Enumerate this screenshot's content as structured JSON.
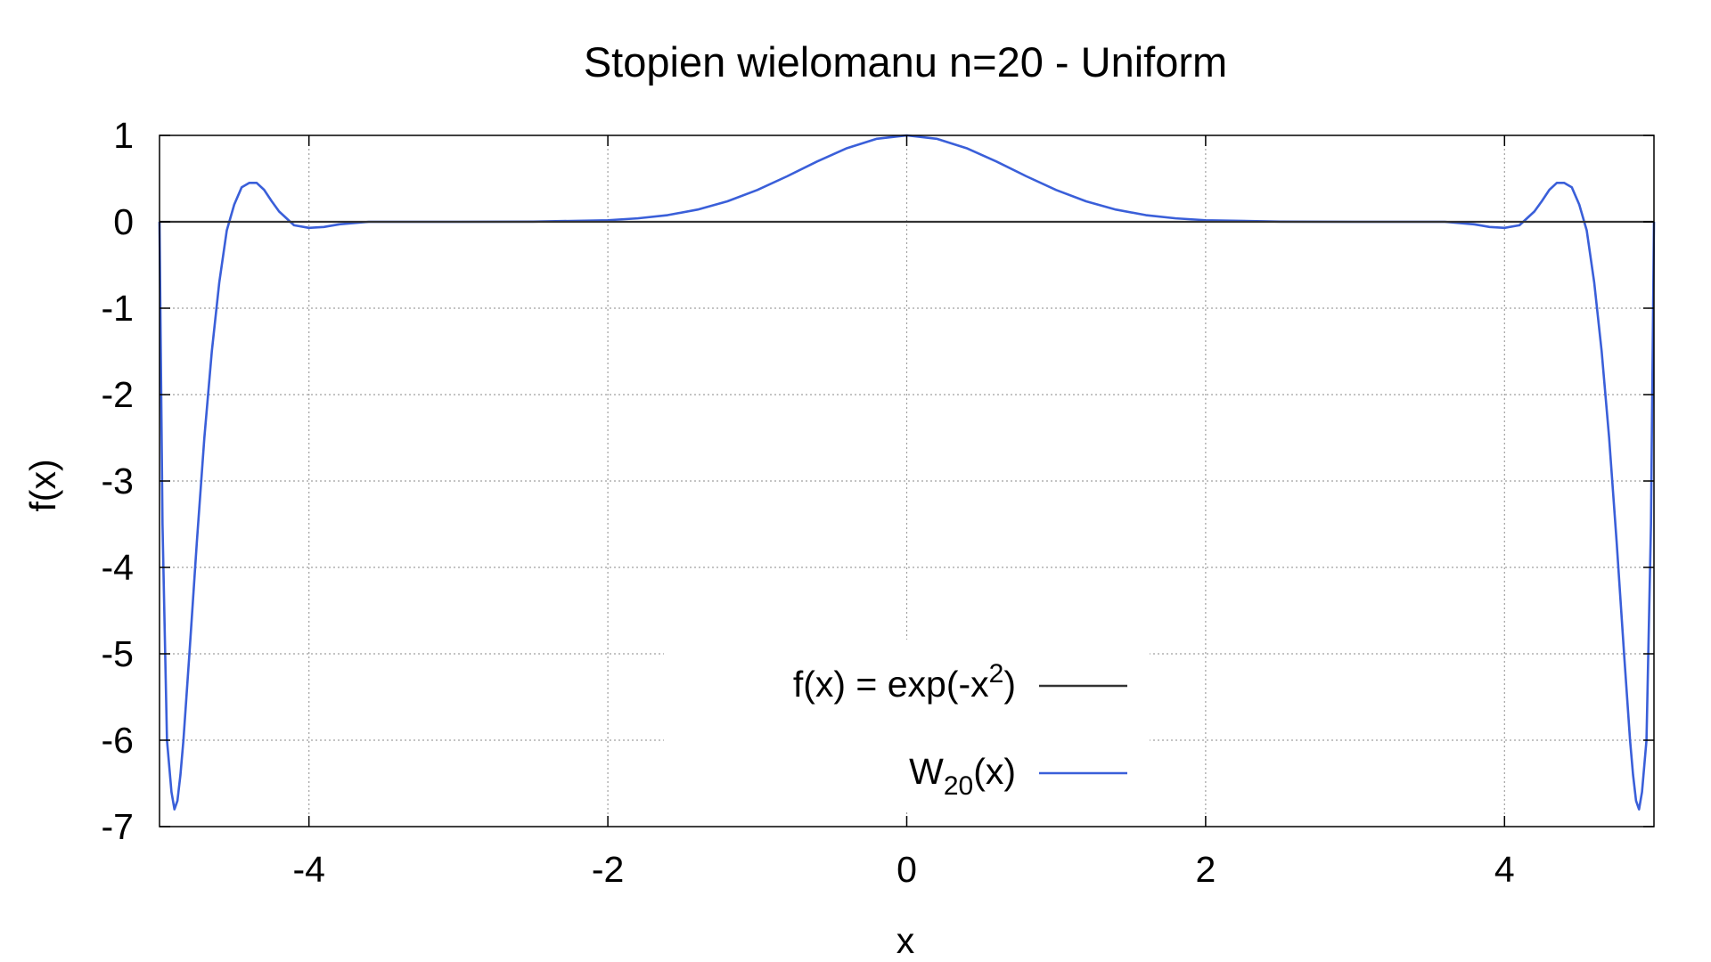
{
  "chart_data": {
    "type": "line",
    "title": "Stopien wielomanu n=20 - Uniform",
    "xlabel": "x",
    "ylabel": "f(x)",
    "xlim": [
      -5,
      5
    ],
    "ylim": [
      -7,
      1
    ],
    "x_ticks": [
      "-4",
      "-2",
      "0",
      "2",
      "4"
    ],
    "x_tick_values": [
      -4,
      -2,
      0,
      2,
      4
    ],
    "y_ticks": [
      "1",
      "0",
      "-1",
      "-2",
      "-3",
      "-4",
      "-5",
      "-6",
      "-7"
    ],
    "y_tick_values": [
      1,
      0,
      -1,
      -2,
      -3,
      -4,
      -5,
      -6,
      -7
    ],
    "grid": true,
    "legend_position": "bottom-center",
    "legend": {
      "f_main": "f(x) = exp(-x",
      "f_sup": "2",
      "f_end": ")",
      "w_main": "W",
      "w_sub": "20",
      "w_end": "(x)"
    },
    "series": [
      {
        "legend_label": "f(x) = exp(-x2)",
        "color": "#333333",
        "x": [
          -5,
          5
        ],
        "y": [
          0,
          0
        ]
      },
      {
        "legend_label": "W20(x)",
        "color": "#3a5fd9",
        "x": [
          -5.0,
          -4.98,
          -4.95,
          -4.92,
          -4.9,
          -4.88,
          -4.86,
          -4.84,
          -4.82,
          -4.8,
          -4.75,
          -4.7,
          -4.65,
          -4.6,
          -4.55,
          -4.5,
          -4.45,
          -4.4,
          -4.35,
          -4.3,
          -4.25,
          -4.2,
          -4.1,
          -4.0,
          -3.9,
          -3.8,
          -3.6,
          -3.4,
          -3.2,
          -3.0,
          -2.5,
          -2.0,
          -1.8,
          -1.6,
          -1.4,
          -1.2,
          -1.0,
          -0.8,
          -0.6,
          -0.4,
          -0.2,
          0.0,
          0.2,
          0.4,
          0.6,
          0.8,
          1.0,
          1.2,
          1.4,
          1.6,
          1.8,
          2.0,
          2.5,
          3.0,
          3.2,
          3.4,
          3.6,
          3.8,
          3.9,
          4.0,
          4.1,
          4.2,
          4.25,
          4.3,
          4.35,
          4.4,
          4.45,
          4.5,
          4.55,
          4.6,
          4.65,
          4.7,
          4.75,
          4.8,
          4.82,
          4.84,
          4.86,
          4.88,
          4.9,
          4.92,
          4.95,
          4.98,
          5.0
        ],
        "y": [
          0.0,
          -3.5,
          -6.0,
          -6.6,
          -6.8,
          -6.7,
          -6.4,
          -6.0,
          -5.5,
          -5.0,
          -3.7,
          -2.5,
          -1.5,
          -0.7,
          -0.1,
          0.2,
          0.4,
          0.45,
          0.45,
          0.37,
          0.24,
          0.12,
          -0.04,
          -0.07,
          -0.06,
          -0.03,
          0.0,
          0.0,
          0.0,
          0.0,
          0.002,
          0.018,
          0.04,
          0.077,
          0.141,
          0.237,
          0.368,
          0.527,
          0.698,
          0.852,
          0.961,
          1.0,
          0.961,
          0.852,
          0.698,
          0.527,
          0.368,
          0.237,
          0.141,
          0.077,
          0.04,
          0.018,
          0.002,
          0.0,
          0.0,
          0.0,
          0.0,
          -0.03,
          -0.06,
          -0.07,
          -0.04,
          0.12,
          0.24,
          0.37,
          0.45,
          0.45,
          0.4,
          0.2,
          -0.1,
          -0.7,
          -1.5,
          -2.5,
          -3.7,
          -5.0,
          -5.5,
          -6.0,
          -6.4,
          -6.7,
          -6.8,
          -6.6,
          -6.0,
          -3.5,
          0.0
        ]
      }
    ]
  }
}
